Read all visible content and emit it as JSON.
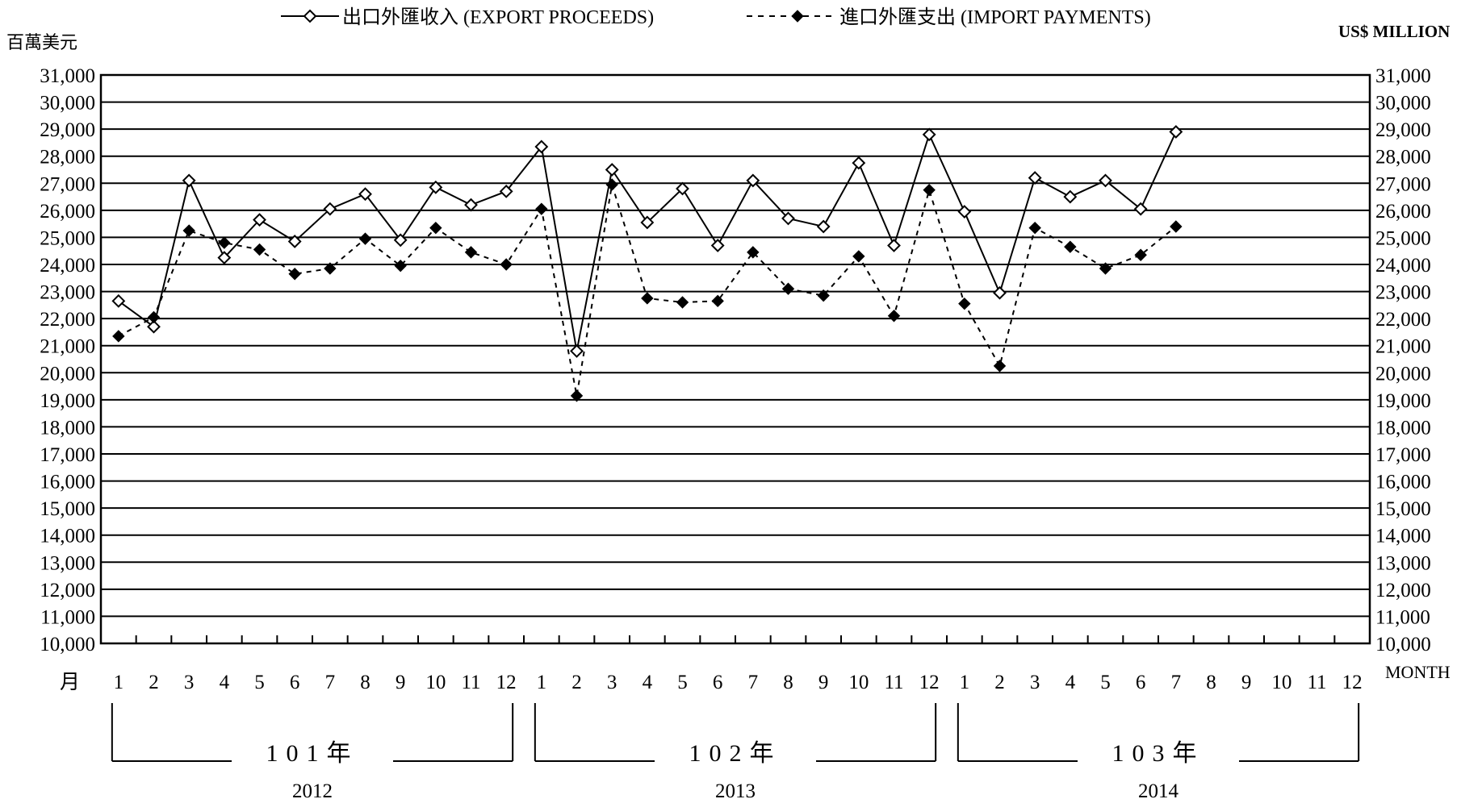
{
  "chart_data": {
    "type": "line",
    "legend": {
      "position": "top",
      "items": [
        {
          "label": "出口外匯收入 (EXPORT PROCEEDS)",
          "style": "solid",
          "marker": "open-diamond"
        },
        {
          "label": "進口外匯支出 (IMPORT PAYMENTS)",
          "style": "dashed",
          "marker": "filled-diamond"
        }
      ]
    },
    "y_axis": {
      "unit_left": "百萬美元",
      "unit_right": "US$ MILLION",
      "ylim": [
        10000,
        31000
      ],
      "ticks": [
        "10,000",
        "11,000",
        "12,000",
        "13,000",
        "14,000",
        "15,000",
        "16,000",
        "17,000",
        "18,000",
        "19,000",
        "20,000",
        "21,000",
        "22,000",
        "23,000",
        "24,000",
        "25,000",
        "26,000",
        "27,000",
        "28,000",
        "29,000",
        "30,000",
        "31,000"
      ],
      "grid": true
    },
    "x_axis": {
      "label_left": "月",
      "label_right": "MONTH",
      "months": [
        "1",
        "2",
        "3",
        "4",
        "5",
        "6",
        "7",
        "8",
        "9",
        "10",
        "11",
        "12",
        "1",
        "2",
        "3",
        "4",
        "5",
        "6",
        "7",
        "8",
        "9",
        "10",
        "11",
        "12",
        "1",
        "2",
        "3",
        "4",
        "5",
        "6",
        "7",
        "8",
        "9",
        "10",
        "11",
        "12"
      ],
      "years": [
        {
          "roc": "101年",
          "ad": "2012"
        },
        {
          "roc": "102年",
          "ad": "2013"
        },
        {
          "roc": "103年",
          "ad": "2014"
        }
      ]
    },
    "series": [
      {
        "name": "出口外匯收入 (EXPORT PROCEEDS)",
        "color": "#000000",
        "values": [
          22650,
          21700,
          27100,
          24250,
          25650,
          24850,
          26050,
          26600,
          24900,
          26850,
          26200,
          26700,
          28350,
          20800,
          27500,
          25550,
          26800,
          24700,
          27100,
          25700,
          25400,
          27750,
          24700,
          28800,
          25950,
          22950,
          27200,
          26500,
          27100,
          26050,
          28900
        ]
      },
      {
        "name": "進口外匯支出 (IMPORT PAYMENTS)",
        "color": "#000000",
        "values": [
          21350,
          22050,
          25250,
          24800,
          24550,
          23650,
          23850,
          24950,
          23950,
          25350,
          24450,
          24000,
          26050,
          19150,
          26950,
          22750,
          22600,
          22650,
          24450,
          23100,
          22850,
          24300,
          22100,
          26750,
          22550,
          20250,
          25350,
          24650,
          23850,
          24350,
          25400
        ]
      }
    ]
  }
}
